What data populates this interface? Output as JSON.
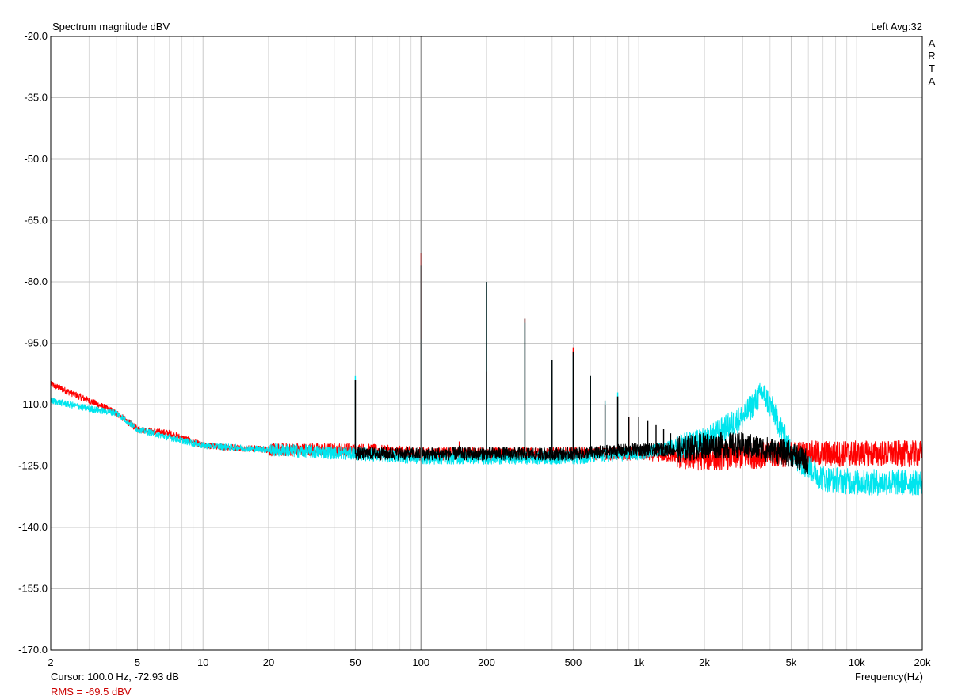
{
  "header": {
    "title": "Spectrum magnitude dBV",
    "channel_info": "Left  Avg:32",
    "brand_letters": [
      "A",
      "R",
      "T",
      "A"
    ]
  },
  "footer": {
    "cursor_readout": "Cursor:  100.0 Hz, -72.93 dB",
    "rms_readout": "RMS =  -69.5 dBV",
    "x_unit_label": "Frequency(Hz)"
  },
  "colors": {
    "grid": "#dcdcdc",
    "grid_major": "#c8c8c8",
    "cursor_line": "#808080",
    "red_series": "#ff0000",
    "cyan_series": "#00e5ee",
    "black_series": "#000000",
    "rms_text": "#cc0000"
  },
  "chart_data": {
    "type": "line",
    "title": "Spectrum magnitude dBV",
    "xlabel": "Frequency(Hz)",
    "ylabel": "",
    "x_scale": "log",
    "xlim": [
      2,
      20000
    ],
    "ylim": [
      -170,
      -20
    ],
    "x_ticks": [
      2,
      5,
      10,
      20,
      50,
      100,
      200,
      500,
      1000,
      2000,
      5000,
      10000,
      20000
    ],
    "x_tick_labels": [
      "2",
      "5",
      "10",
      "20",
      "50",
      "100",
      "200",
      "500",
      "1k",
      "2k",
      "5k",
      "10k",
      "20k"
    ],
    "y_ticks": [
      -20,
      -35,
      -50,
      -65,
      -80,
      -95,
      -110,
      -125,
      -140,
      -155,
      -170
    ],
    "y_tick_labels": [
      "-20.0",
      "-35.0",
      "-50.0",
      "-65.0",
      "-80.0",
      "-95.0",
      "-110.0",
      "-125.0",
      "-140.0",
      "-155.0",
      "-170.0"
    ],
    "grid": true,
    "cursor_x": 100,
    "series": [
      {
        "color": "#ff0000",
        "baseline": [
          [
            2,
            -105
          ],
          [
            3,
            -109
          ],
          [
            4,
            -112
          ],
          [
            5,
            -116
          ],
          [
            7,
            -117
          ],
          [
            10,
            -120
          ],
          [
            20,
            -121
          ],
          [
            50,
            -121
          ],
          [
            100,
            -122
          ],
          [
            200,
            -122
          ],
          [
            500,
            -122
          ],
          [
            1000,
            -122
          ],
          [
            2000,
            -123
          ],
          [
            5000,
            -122
          ],
          [
            10000,
            -122
          ],
          [
            20000,
            -122
          ]
        ],
        "peaks": [
          [
            50,
            -104
          ],
          [
            100,
            -73
          ],
          [
            150,
            -119
          ],
          [
            200,
            -102
          ],
          [
            300,
            -89
          ],
          [
            400,
            -99
          ],
          [
            500,
            -96
          ],
          [
            600,
            -103
          ],
          [
            700,
            -109
          ],
          [
            800,
            -108
          ],
          [
            900,
            -113
          ]
        ]
      },
      {
        "color": "#00e5ee",
        "baseline": [
          [
            2,
            -109
          ],
          [
            3,
            -111
          ],
          [
            4,
            -112
          ],
          [
            5,
            -116
          ],
          [
            7,
            -118
          ],
          [
            10,
            -120
          ],
          [
            20,
            -121
          ],
          [
            50,
            -122
          ],
          [
            100,
            -123
          ],
          [
            200,
            -123
          ],
          [
            500,
            -123
          ],
          [
            1000,
            -122
          ],
          [
            1500,
            -120
          ],
          [
            2000,
            -119
          ],
          [
            3000,
            -113
          ],
          [
            3700,
            -107
          ],
          [
            4200,
            -112
          ],
          [
            5000,
            -122
          ],
          [
            7000,
            -128
          ],
          [
            10000,
            -129
          ],
          [
            20000,
            -129
          ]
        ],
        "peaks": [
          [
            50,
            -103
          ],
          [
            100,
            -94
          ],
          [
            200,
            -80
          ],
          [
            300,
            -90
          ],
          [
            400,
            -99
          ],
          [
            500,
            -98
          ],
          [
            600,
            -103
          ],
          [
            700,
            -109
          ],
          [
            800,
            -107
          ]
        ]
      },
      {
        "color": "#000000",
        "baseline": [
          [
            50,
            -122
          ],
          [
            100,
            -122
          ],
          [
            200,
            -122
          ],
          [
            500,
            -122
          ],
          [
            1000,
            -121
          ],
          [
            1500,
            -121
          ],
          [
            2000,
            -120
          ],
          [
            3000,
            -120
          ],
          [
            5000,
            -122
          ],
          [
            6000,
            -124
          ]
        ],
        "peaks": [
          [
            50,
            -104
          ],
          [
            100,
            -76
          ],
          [
            150,
            -120
          ],
          [
            200,
            -80
          ],
          [
            300,
            -89
          ],
          [
            400,
            -99
          ],
          [
            500,
            -97
          ],
          [
            600,
            -103
          ],
          [
            700,
            -110
          ],
          [
            800,
            -108
          ],
          [
            900,
            -113
          ],
          [
            1000,
            -113
          ],
          [
            1100,
            -114
          ],
          [
            1200,
            -115
          ],
          [
            1300,
            -116
          ],
          [
            1400,
            -117
          ],
          [
            1500,
            -118
          ]
        ]
      }
    ]
  }
}
